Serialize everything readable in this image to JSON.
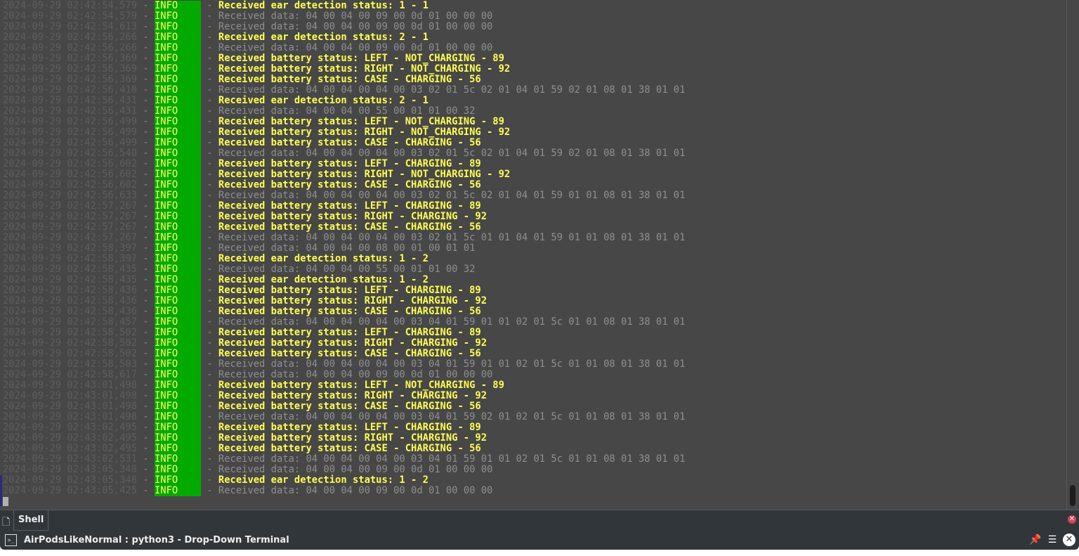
{
  "window": {
    "title": "AirPodsLikeNormal : python3 - Drop-Down Terminal"
  },
  "tabs": [
    {
      "label": "Shell"
    }
  ],
  "icons": {
    "new_tab": "new-tab-icon",
    "close_tab": "close-icon",
    "terminal": "terminal-icon",
    "pin": "pin-icon",
    "menu": "hamburger-menu-icon",
    "close": "close-icon"
  },
  "colors": {
    "level_bg": "#00aa00",
    "level_fg": "#ffff66",
    "highlight": "#ffff55",
    "data_text": "#8f8f8f",
    "background": "#474747"
  },
  "log": [
    {
      "ts": "2024-09-29 02:42:54,579",
      "level": "INFO",
      "msg": "Received ear detection status: 1 - 1",
      "hl": true
    },
    {
      "ts": "2024-09-29 02:42:54,579",
      "level": "INFO",
      "msg": "Received data: 04 00 04 00 09 00 0d 01 00 00 00",
      "hl": false
    },
    {
      "ts": "2024-09-29 02:42:54,613",
      "level": "INFO",
      "msg": "Received data: 04 00 04 00 09 00 0d 01 00 00 00",
      "hl": false
    },
    {
      "ts": "2024-09-29 02:42:56,266",
      "level": "INFO",
      "msg": "Received ear detection status: 2 - 1",
      "hl": true
    },
    {
      "ts": "2024-09-29 02:42:56,266",
      "level": "INFO",
      "msg": "Received data: 04 00 04 00 09 00 0d 01 00 00 00",
      "hl": false
    },
    {
      "ts": "2024-09-29 02:42:56,369",
      "level": "INFO",
      "msg": "Received battery status: LEFT - NOT_CHARGING - 89",
      "hl": true
    },
    {
      "ts": "2024-09-29 02:42:56,369",
      "level": "INFO",
      "msg": "Received battery status: RIGHT - NOT_CHARGING - 92",
      "hl": true
    },
    {
      "ts": "2024-09-29 02:42:56,369",
      "level": "INFO",
      "msg": "Received battery status: CASE - CHARGING - 56",
      "hl": true
    },
    {
      "ts": "2024-09-29 02:42:56,410",
      "level": "INFO",
      "msg": "Received data: 04 00 04 00 04 00 03 02 01 5c 02 01 04 01 59 02 01 08 01 38 01 01",
      "hl": false
    },
    {
      "ts": "2024-09-29 02:42:56,431",
      "level": "INFO",
      "msg": "Received ear detection status: 2 - 1",
      "hl": true
    },
    {
      "ts": "2024-09-29 02:42:56,431",
      "level": "INFO",
      "msg": "Received data: 04 00 04 00 55 00 01 01 00 32",
      "hl": false
    },
    {
      "ts": "2024-09-29 02:42:56,499",
      "level": "INFO",
      "msg": "Received battery status: LEFT - NOT_CHARGING - 89",
      "hl": true
    },
    {
      "ts": "2024-09-29 02:42:56,499",
      "level": "INFO",
      "msg": "Received battery status: RIGHT - NOT_CHARGING - 92",
      "hl": true
    },
    {
      "ts": "2024-09-29 02:42:56,499",
      "level": "INFO",
      "msg": "Received battery status: CASE - CHARGING - 56",
      "hl": true
    },
    {
      "ts": "2024-09-29 02:42:56,540",
      "level": "INFO",
      "msg": "Received data: 04 00 04 00 04 00 03 02 01 5c 02 01 04 01 59 02 01 08 01 38 01 01",
      "hl": false
    },
    {
      "ts": "2024-09-29 02:42:56,602",
      "level": "INFO",
      "msg": "Received battery status: LEFT - CHARGING - 89",
      "hl": true
    },
    {
      "ts": "2024-09-29 02:42:56,602",
      "level": "INFO",
      "msg": "Received battery status: RIGHT - NOT_CHARGING - 92",
      "hl": true
    },
    {
      "ts": "2024-09-29 02:42:56,602",
      "level": "INFO",
      "msg": "Received battery status: CASE - CHARGING - 56",
      "hl": true
    },
    {
      "ts": "2024-09-29 02:42:56,633",
      "level": "INFO",
      "msg": "Received data: 04 00 04 00 04 00 03 02 01 5c 02 01 04 01 59 01 01 08 01 38 01 01",
      "hl": false
    },
    {
      "ts": "2024-09-29 02:42:57,267",
      "level": "INFO",
      "msg": "Received battery status: LEFT - CHARGING - 89",
      "hl": true
    },
    {
      "ts": "2024-09-29 02:42:57,267",
      "level": "INFO",
      "msg": "Received battery status: RIGHT - CHARGING - 92",
      "hl": true
    },
    {
      "ts": "2024-09-29 02:42:57,267",
      "level": "INFO",
      "msg": "Received battery status: CASE - CHARGING - 56",
      "hl": true
    },
    {
      "ts": "2024-09-29 02:42:57,267",
      "level": "INFO",
      "msg": "Received data: 04 00 04 00 04 00 03 02 01 5c 01 01 04 01 59 01 01 08 01 38 01 01",
      "hl": false
    },
    {
      "ts": "2024-09-29 02:42:58,397",
      "level": "INFO",
      "msg": "Received data: 04 00 04 00 08 00 01 00 01 01",
      "hl": false
    },
    {
      "ts": "2024-09-29 02:42:58,397",
      "level": "INFO",
      "msg": "Received ear detection status: 1 - 2",
      "hl": true
    },
    {
      "ts": "2024-09-29 02:42:58,435",
      "level": "INFO",
      "msg": "Received data: 04 00 04 00 55 00 01 01 00 32",
      "hl": false
    },
    {
      "ts": "2024-09-29 02:42:58,435",
      "level": "INFO",
      "msg": "Received ear detection status: 1 - 2",
      "hl": true
    },
    {
      "ts": "2024-09-29 02:42:58,436",
      "level": "INFO",
      "msg": "Received battery status: LEFT - CHARGING - 89",
      "hl": true
    },
    {
      "ts": "2024-09-29 02:42:58,436",
      "level": "INFO",
      "msg": "Received battery status: RIGHT - CHARGING - 92",
      "hl": true
    },
    {
      "ts": "2024-09-29 02:42:58,436",
      "level": "INFO",
      "msg": "Received battery status: CASE - CHARGING - 56",
      "hl": true
    },
    {
      "ts": "2024-09-29 02:42:58,457",
      "level": "INFO",
      "msg": "Received data: 04 00 04 00 04 00 03 04 01 59 01 01 02 01 5c 01 01 08 01 38 01 01",
      "hl": false
    },
    {
      "ts": "2024-09-29 02:42:58,502",
      "level": "INFO",
      "msg": "Received battery status: LEFT - CHARGING - 89",
      "hl": true
    },
    {
      "ts": "2024-09-29 02:42:58,502",
      "level": "INFO",
      "msg": "Received battery status: RIGHT - CHARGING - 92",
      "hl": true
    },
    {
      "ts": "2024-09-29 02:42:58,502",
      "level": "INFO",
      "msg": "Received battery status: CASE - CHARGING - 56",
      "hl": true
    },
    {
      "ts": "2024-09-29 02:42:58,503",
      "level": "INFO",
      "msg": "Received data: 04 00 04 00 04 00 03 04 01 59 01 01 02 01 5c 01 01 08 01 38 01 01",
      "hl": false
    },
    {
      "ts": "2024-09-29 02:42:58,617",
      "level": "INFO",
      "msg": "Received data: 04 00 04 00 09 00 0d 01 00 00 00",
      "hl": false
    },
    {
      "ts": "2024-09-29 02:43:01,498",
      "level": "INFO",
      "msg": "Received battery status: LEFT - NOT_CHARGING - 89",
      "hl": true
    },
    {
      "ts": "2024-09-29 02:43:01,498",
      "level": "INFO",
      "msg": "Received battery status: RIGHT - CHARGING - 92",
      "hl": true
    },
    {
      "ts": "2024-09-29 02:43:01,498",
      "level": "INFO",
      "msg": "Received battery status: CASE - CHARGING - 56",
      "hl": true
    },
    {
      "ts": "2024-09-29 02:43:01,498",
      "level": "INFO",
      "msg": "Received data: 04 00 04 00 04 00 03 04 01 59 02 01 02 01 5c 01 01 08 01 38 01 01",
      "hl": false
    },
    {
      "ts": "2024-09-29 02:43:02,495",
      "level": "INFO",
      "msg": "Received battery status: LEFT - CHARGING - 89",
      "hl": true
    },
    {
      "ts": "2024-09-29 02:43:02,495",
      "level": "INFO",
      "msg": "Received battery status: RIGHT - CHARGING - 92",
      "hl": true
    },
    {
      "ts": "2024-09-29 02:43:02,495",
      "level": "INFO",
      "msg": "Received battery status: CASE - CHARGING - 56",
      "hl": true
    },
    {
      "ts": "2024-09-29 02:43:02,531",
      "level": "INFO",
      "msg": "Received data: 04 00 04 00 04 00 03 04 01 59 01 01 02 01 5c 01 01 08 01 38 01 01",
      "hl": false
    },
    {
      "ts": "2024-09-29 02:43:05,348",
      "level": "INFO",
      "msg": "Received data: 04 00 04 00 09 00 0d 01 00 00 00",
      "hl": false
    },
    {
      "ts": "2024-09-29 02:43:05,348",
      "level": "INFO",
      "msg": "Received ear detection status: 1 - 2",
      "hl": true
    },
    {
      "ts": "2024-09-29 02:43:05,425",
      "level": "INFO",
      "msg": "Received data: 04 00 04 00 09 00 0d 01 00 00 00",
      "hl": false
    }
  ]
}
